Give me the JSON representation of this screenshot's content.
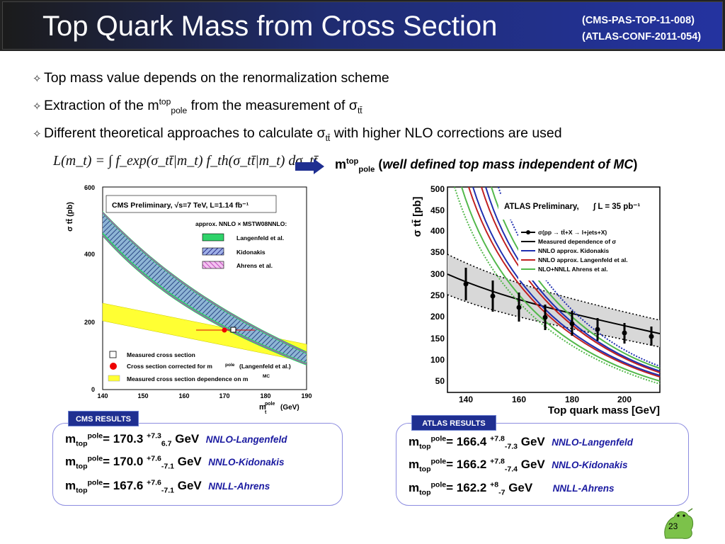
{
  "header": {
    "title": "Top Quark Mass from Cross Section",
    "refs": [
      "(CMS-PAS-TOP-11-008)",
      "(ATLAS-CONF-2011-054)"
    ]
  },
  "bullets": [
    {
      "text": "Top mass value depends on the renormalization scheme"
    },
    {
      "pre": "Extraction of the m",
      "sup": "top",
      "sub": "pole",
      "post": " from the measurement of σ",
      "sub2": "tt̄"
    },
    {
      "pre": "Different theoretical approaches to calculate σ",
      "sub": "tt̄",
      "post": "  with higher NLO corrections are used"
    }
  ],
  "formula": "L(m_t) = ∫ f_exp(σ_tt̄|m_t) f_th(σ_tt̄|m_t) dσ_tt̄",
  "mtop_note": {
    "m": "m",
    "sup": "top",
    "sub": "pole",
    "open": " (",
    "desc": "well defined top mass independent of MC",
    "close": ")"
  },
  "cms_plot": {
    "legend_title": "CMS Preliminary, √s=7 TeV, L=1.14 fb⁻¹",
    "approx": "approx. NNLO × MSTW08NNLO:",
    "bands": [
      "Langenfeld et al.",
      "Kidonakis",
      "Ahrens et al."
    ],
    "markers": [
      "Measured cross section",
      "Cross section corrected for m",
      "Measured cross section dependence on m"
    ],
    "ylabel": "σ tt̄ (pb)",
    "xlabel": "m",
    "xunit": "(GeV)",
    "yticks": [
      "0",
      "200",
      "400",
      "600"
    ],
    "xticks": [
      "140",
      "150",
      "160",
      "170",
      "180",
      "190"
    ]
  },
  "atlas_plot": {
    "title": "ATLAS Preliminary,",
    "lumi": "∫ L = 35 pb⁻¹",
    "legend": [
      "σ(pp → tt̄+X → l+jets+X)",
      "Measured dependence of σ",
      "NNLO approx. Kidonakis",
      "NNLO approx. Langenfeld et al.",
      "NLO+NNLL Ahrens et al."
    ],
    "ylabel": "σ tt̄ [pb]",
    "xlabel": "Top quark mass [GeV]",
    "yticks": [
      "50",
      "100",
      "150",
      "200",
      "250",
      "300",
      "350",
      "400",
      "450",
      "500"
    ],
    "xticks": [
      "140",
      "160",
      "180",
      "200"
    ]
  },
  "cms_results": {
    "tag": "CMS RESULTS",
    "rows": [
      {
        "val": "= 170.3 ",
        "up": "+7.3",
        "dn": "6.7",
        "unit": " GeV",
        "meth": "NNLO-Langenfeld"
      },
      {
        "val": "= 170.0 ",
        "up": "+7.6",
        "dn": "-7.1",
        "unit": " GeV",
        "meth": "NNLO-Kidonakis"
      },
      {
        "val": "= 167.6 ",
        "up": "+7.6",
        "dn": "-7.1",
        "unit": " GeV",
        "meth": "NNLL-Ahrens"
      }
    ]
  },
  "atlas_results": {
    "tag": "ATLAS RESULTS",
    "rows": [
      {
        "val": "= 166.4 ",
        "up": "+7.8",
        "dn": "-7.3",
        "unit": " GeV",
        "meth": "NNLO-Langenfeld"
      },
      {
        "val": "= 166.2 ",
        "up": "+7.8",
        "dn": "-7.4",
        "unit": " GeV",
        "meth": "NNLO-Kidonakis"
      },
      {
        "val": "= 162.2 ",
        "up": "+8",
        "dn": "-7",
        "unit": " GeV",
        "meth": "NNLL-Ahrens"
      }
    ]
  },
  "result_sym": {
    "m": "m",
    "sub": "top",
    "sup": "pole"
  },
  "page_number": "23"
}
